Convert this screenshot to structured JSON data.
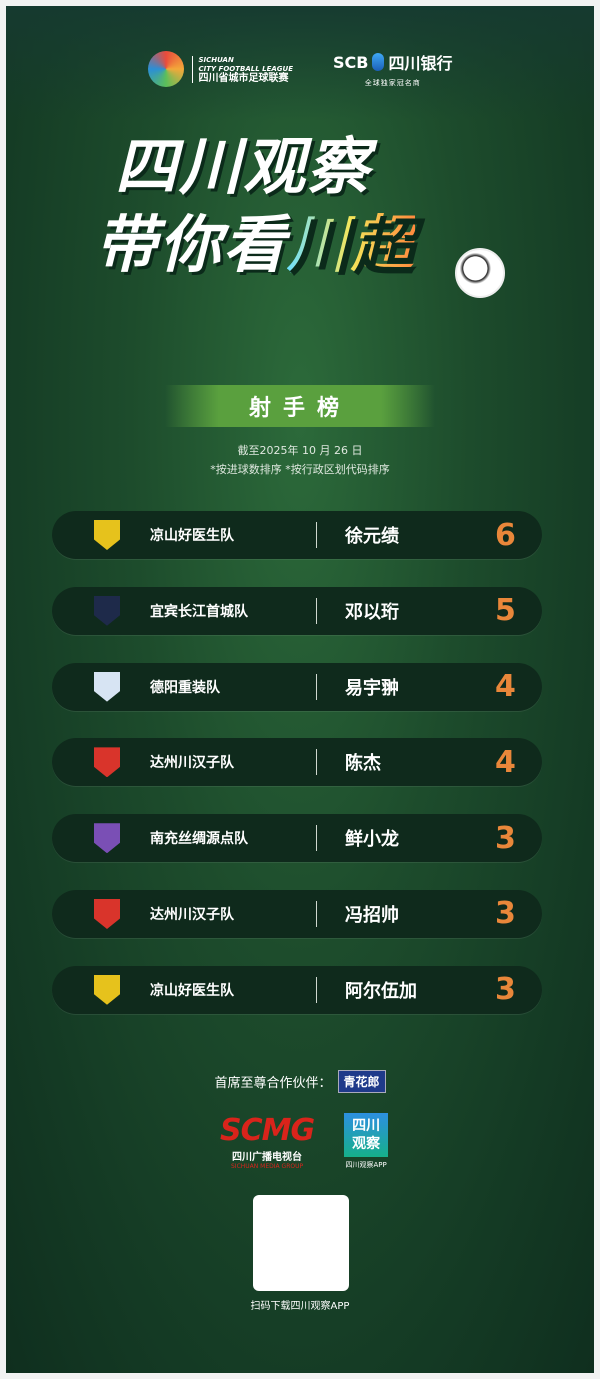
{
  "header": {
    "league": {
      "en1": "SICHUAN",
      "en2": "CITY FOOTBALL LEAGUE",
      "cn": "四川省城市足球联赛"
    },
    "bank": {
      "name": "SCB",
      "cn": "四川银行",
      "sub": "全球独家冠名商"
    }
  },
  "title": {
    "line1": "四川观察",
    "line2a": "带你看",
    "line2b": "川超"
  },
  "banner": "射手榜",
  "date": "截至2025年 10 月 26 日",
  "note": "*按进球数排序 *按行政区划代码排序",
  "rows": [
    {
      "team": "凉山好医生队",
      "player": "徐元绩",
      "goals": "6",
      "badge_color": "#e6c21c"
    },
    {
      "team": "宜宾长江首城队",
      "player": "邓以珩",
      "goals": "5",
      "badge_color": "#1e2a4a"
    },
    {
      "team": "德阳重装队",
      "player": "易宇翀",
      "goals": "4",
      "badge_color": "#d7e4f3"
    },
    {
      "team": "达州川汉子队",
      "player": "陈杰",
      "goals": "4",
      "badge_color": "#d9342b"
    },
    {
      "team": "南充丝绸源点队",
      "player": "鲜小龙",
      "goals": "3",
      "badge_color": "#7a4fb5"
    },
    {
      "team": "达州川汉子队",
      "player": "冯招帅",
      "goals": "3",
      "badge_color": "#d9342b"
    },
    {
      "team": "凉山好医生队",
      "player": "阿尔伍加",
      "goals": "3",
      "badge_color": "#e6c21c"
    }
  ],
  "partner": {
    "label": "首席至尊合作伙伴：",
    "brand": "青花郎"
  },
  "scmg": {
    "big": "SCMG",
    "cn": "四川广播电视台",
    "en": "SICHUAN MEDIA GROUP"
  },
  "app": {
    "icon_text1": "四川",
    "icon_text2": "观察",
    "label": "四川观察APP"
  },
  "qr_label": "扫码下载四川观察APP",
  "colors": {
    "goals": "#e9873a",
    "row_bg": "#0f2a1c"
  }
}
